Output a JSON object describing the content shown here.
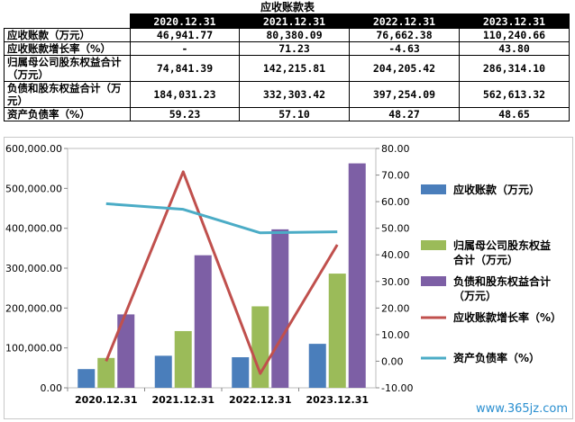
{
  "title": "应收账款表",
  "table": {
    "headers": [
      "2020.12.31",
      "2021.12.31",
      "2022.12.31",
      "2023.12.31"
    ],
    "rows": [
      {
        "label": "应收账款（万元）",
        "values": [
          "46,941.77",
          "80,380.09",
          "76,662.38",
          "110,240.66"
        ]
      },
      {
        "label": "应收账款增长率（%）",
        "values": [
          "-",
          "71.23",
          "-4.63",
          "43.80"
        ]
      },
      {
        "label": "归属母公司股东权益合计（万元）",
        "values": [
          "74,841.39",
          "142,215.81",
          "204,205.42",
          "286,314.10"
        ]
      },
      {
        "label": "负债和股东权益合计（万元）",
        "values": [
          "184,031.23",
          "332,303.42",
          "397,254.09",
          "562,613.32"
        ]
      },
      {
        "label": "资产负债率（%）",
        "values": [
          "59.23",
          "57.10",
          "48.27",
          "48.65"
        ]
      }
    ]
  },
  "chart_data": {
    "type": "bar",
    "categories": [
      "2020.12.31",
      "2021.12.31",
      "2022.12.31",
      "2023.12.31"
    ],
    "y_left": {
      "min": 0,
      "max": 600000,
      "step": 100000,
      "ticks": [
        "0.00",
        "100,000.00",
        "200,000.00",
        "300,000.00",
        "400,000.00",
        "500,000.00",
        "600,000.00"
      ]
    },
    "y_right": {
      "min": -10,
      "max": 80,
      "step": 10,
      "ticks": [
        "-10.00",
        "0.00",
        "10.00",
        "20.00",
        "30.00",
        "40.00",
        "50.00",
        "60.00",
        "70.00",
        "80.00"
      ]
    },
    "bar_series": [
      {
        "name": "应收账款（万元）",
        "legend_lines": [
          "应收账款（万元）"
        ],
        "color": "#4a7ebb",
        "values": [
          46941.77,
          80380.09,
          76662.38,
          110240.66
        ]
      },
      {
        "name": "归属母公司股东权益合计（万元）",
        "legend_lines": [
          "归属母公司股东权益",
          "合计（万元）"
        ],
        "color": "#9bbb59",
        "values": [
          74841.39,
          142215.81,
          204205.42,
          286314.1
        ]
      },
      {
        "name": "负债和股东权益合计（万元）",
        "legend_lines": [
          "负债和股东权益合计",
          "（万元）"
        ],
        "color": "#7d5fa5",
        "values": [
          184031.23,
          332303.42,
          397254.09,
          562613.32
        ]
      }
    ],
    "line_series": [
      {
        "name": "应收账款增长率（%）",
        "legend_lines": [
          "应收账款增长率（%）"
        ],
        "color": "#c0504d",
        "values": [
          0,
          71.23,
          -4.63,
          43.8
        ]
      },
      {
        "name": "资产负债率（%）",
        "legend_lines": [
          "资产负债率（%）"
        ],
        "color": "#4bacc6",
        "values": [
          59.23,
          57.1,
          48.27,
          48.65
        ]
      }
    ]
  },
  "watermark": "www.365jz.com"
}
